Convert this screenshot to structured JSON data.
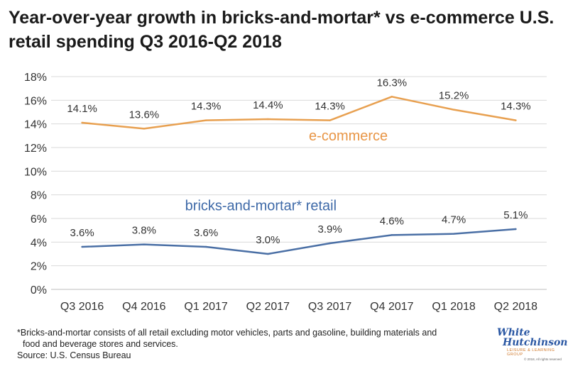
{
  "title": "Year-over-year growth in bricks-and-mortar* vs e-commerce U.S. retail spending Q3 2016-Q2 2018",
  "footnote_line1": "*Bricks-and-mortar consists of all retail excluding motor vehicles, parts and gasoline, building materials and",
  "footnote_line2": "food and beverage stores and services.",
  "source": "Source: U.S. Census Bureau",
  "logo": {
    "line1": "White",
    "line2": "Hutchinson",
    "line3": "LEISURE & LEARNING GROUP",
    "line4": "© 2018, All rights reserved"
  },
  "colors": {
    "ecommerce": "#e8a050",
    "bricks": "#4a6fa5",
    "ecommerce_label": "#e89545",
    "bricks_label": "#3f6aa8",
    "grid": "#d9d9d9"
  },
  "chart_data": {
    "type": "line",
    "categories": [
      "Q3 2016",
      "Q4 2016",
      "Q1 2017",
      "Q2 2017",
      "Q3 2017",
      "Q4 2017",
      "Q1 2018",
      "Q2 2018"
    ],
    "series": [
      {
        "name": "e-commerce",
        "values": [
          14.1,
          13.6,
          14.3,
          14.4,
          14.3,
          16.3,
          15.2,
          14.3
        ],
        "labels": [
          "14.1%",
          "13.6%",
          "14.3%",
          "14.4%",
          "14.3%",
          "16.3%",
          "15.2%",
          "14.3%"
        ]
      },
      {
        "name": "bricks-and-mortar* retail",
        "values": [
          3.6,
          3.8,
          3.6,
          3.0,
          3.9,
          4.6,
          4.7,
          5.1
        ],
        "labels": [
          "3.6%",
          "3.8%",
          "3.6%",
          "3.0%",
          "3.9%",
          "4.6%",
          "4.7%",
          "5.1%"
        ]
      }
    ],
    "yticks": [
      "0%",
      "2%",
      "4%",
      "6%",
      "8%",
      "10%",
      "12%",
      "14%",
      "16%",
      "18%"
    ],
    "ylim": [
      0,
      18
    ],
    "grid": true
  }
}
